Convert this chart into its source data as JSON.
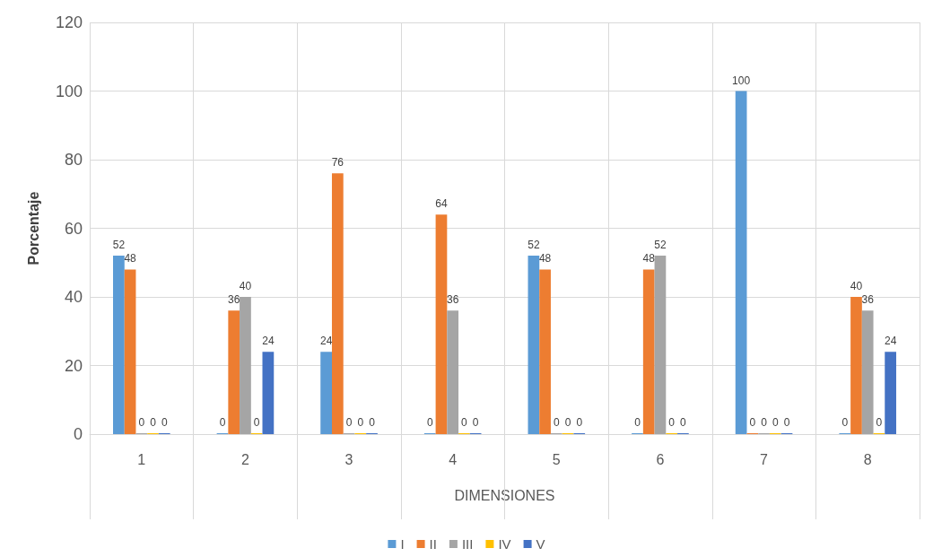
{
  "chart_data": {
    "type": "bar",
    "xlabel": "DIMENSIONES",
    "ylabel": "Porcentaje",
    "categories": [
      "1",
      "2",
      "3",
      "4",
      "5",
      "6",
      "7",
      "8"
    ],
    "series": [
      {
        "name": "I",
        "color": "#5b9bd5",
        "values": [
          52,
          0,
          24,
          0,
          52,
          0,
          100,
          0
        ]
      },
      {
        "name": "II",
        "color": "#ed7d31",
        "values": [
          48,
          36,
          76,
          64,
          48,
          48,
          0,
          40
        ]
      },
      {
        "name": "III",
        "color": "#a5a5a5",
        "values": [
          0,
          40,
          0,
          36,
          0,
          52,
          0,
          36
        ]
      },
      {
        "name": "IV",
        "color": "#ffc000",
        "values": [
          0,
          0,
          0,
          0,
          0,
          0,
          0,
          0
        ]
      },
      {
        "name": "V",
        "color": "#4472c4",
        "values": [
          0,
          24,
          0,
          0,
          0,
          0,
          0,
          24
        ]
      }
    ],
    "ylim": [
      0,
      120
    ],
    "yticks": [
      0,
      20,
      40,
      60,
      80,
      100,
      120
    ],
    "grid": true,
    "legend": "bottom",
    "data_labels": true
  }
}
